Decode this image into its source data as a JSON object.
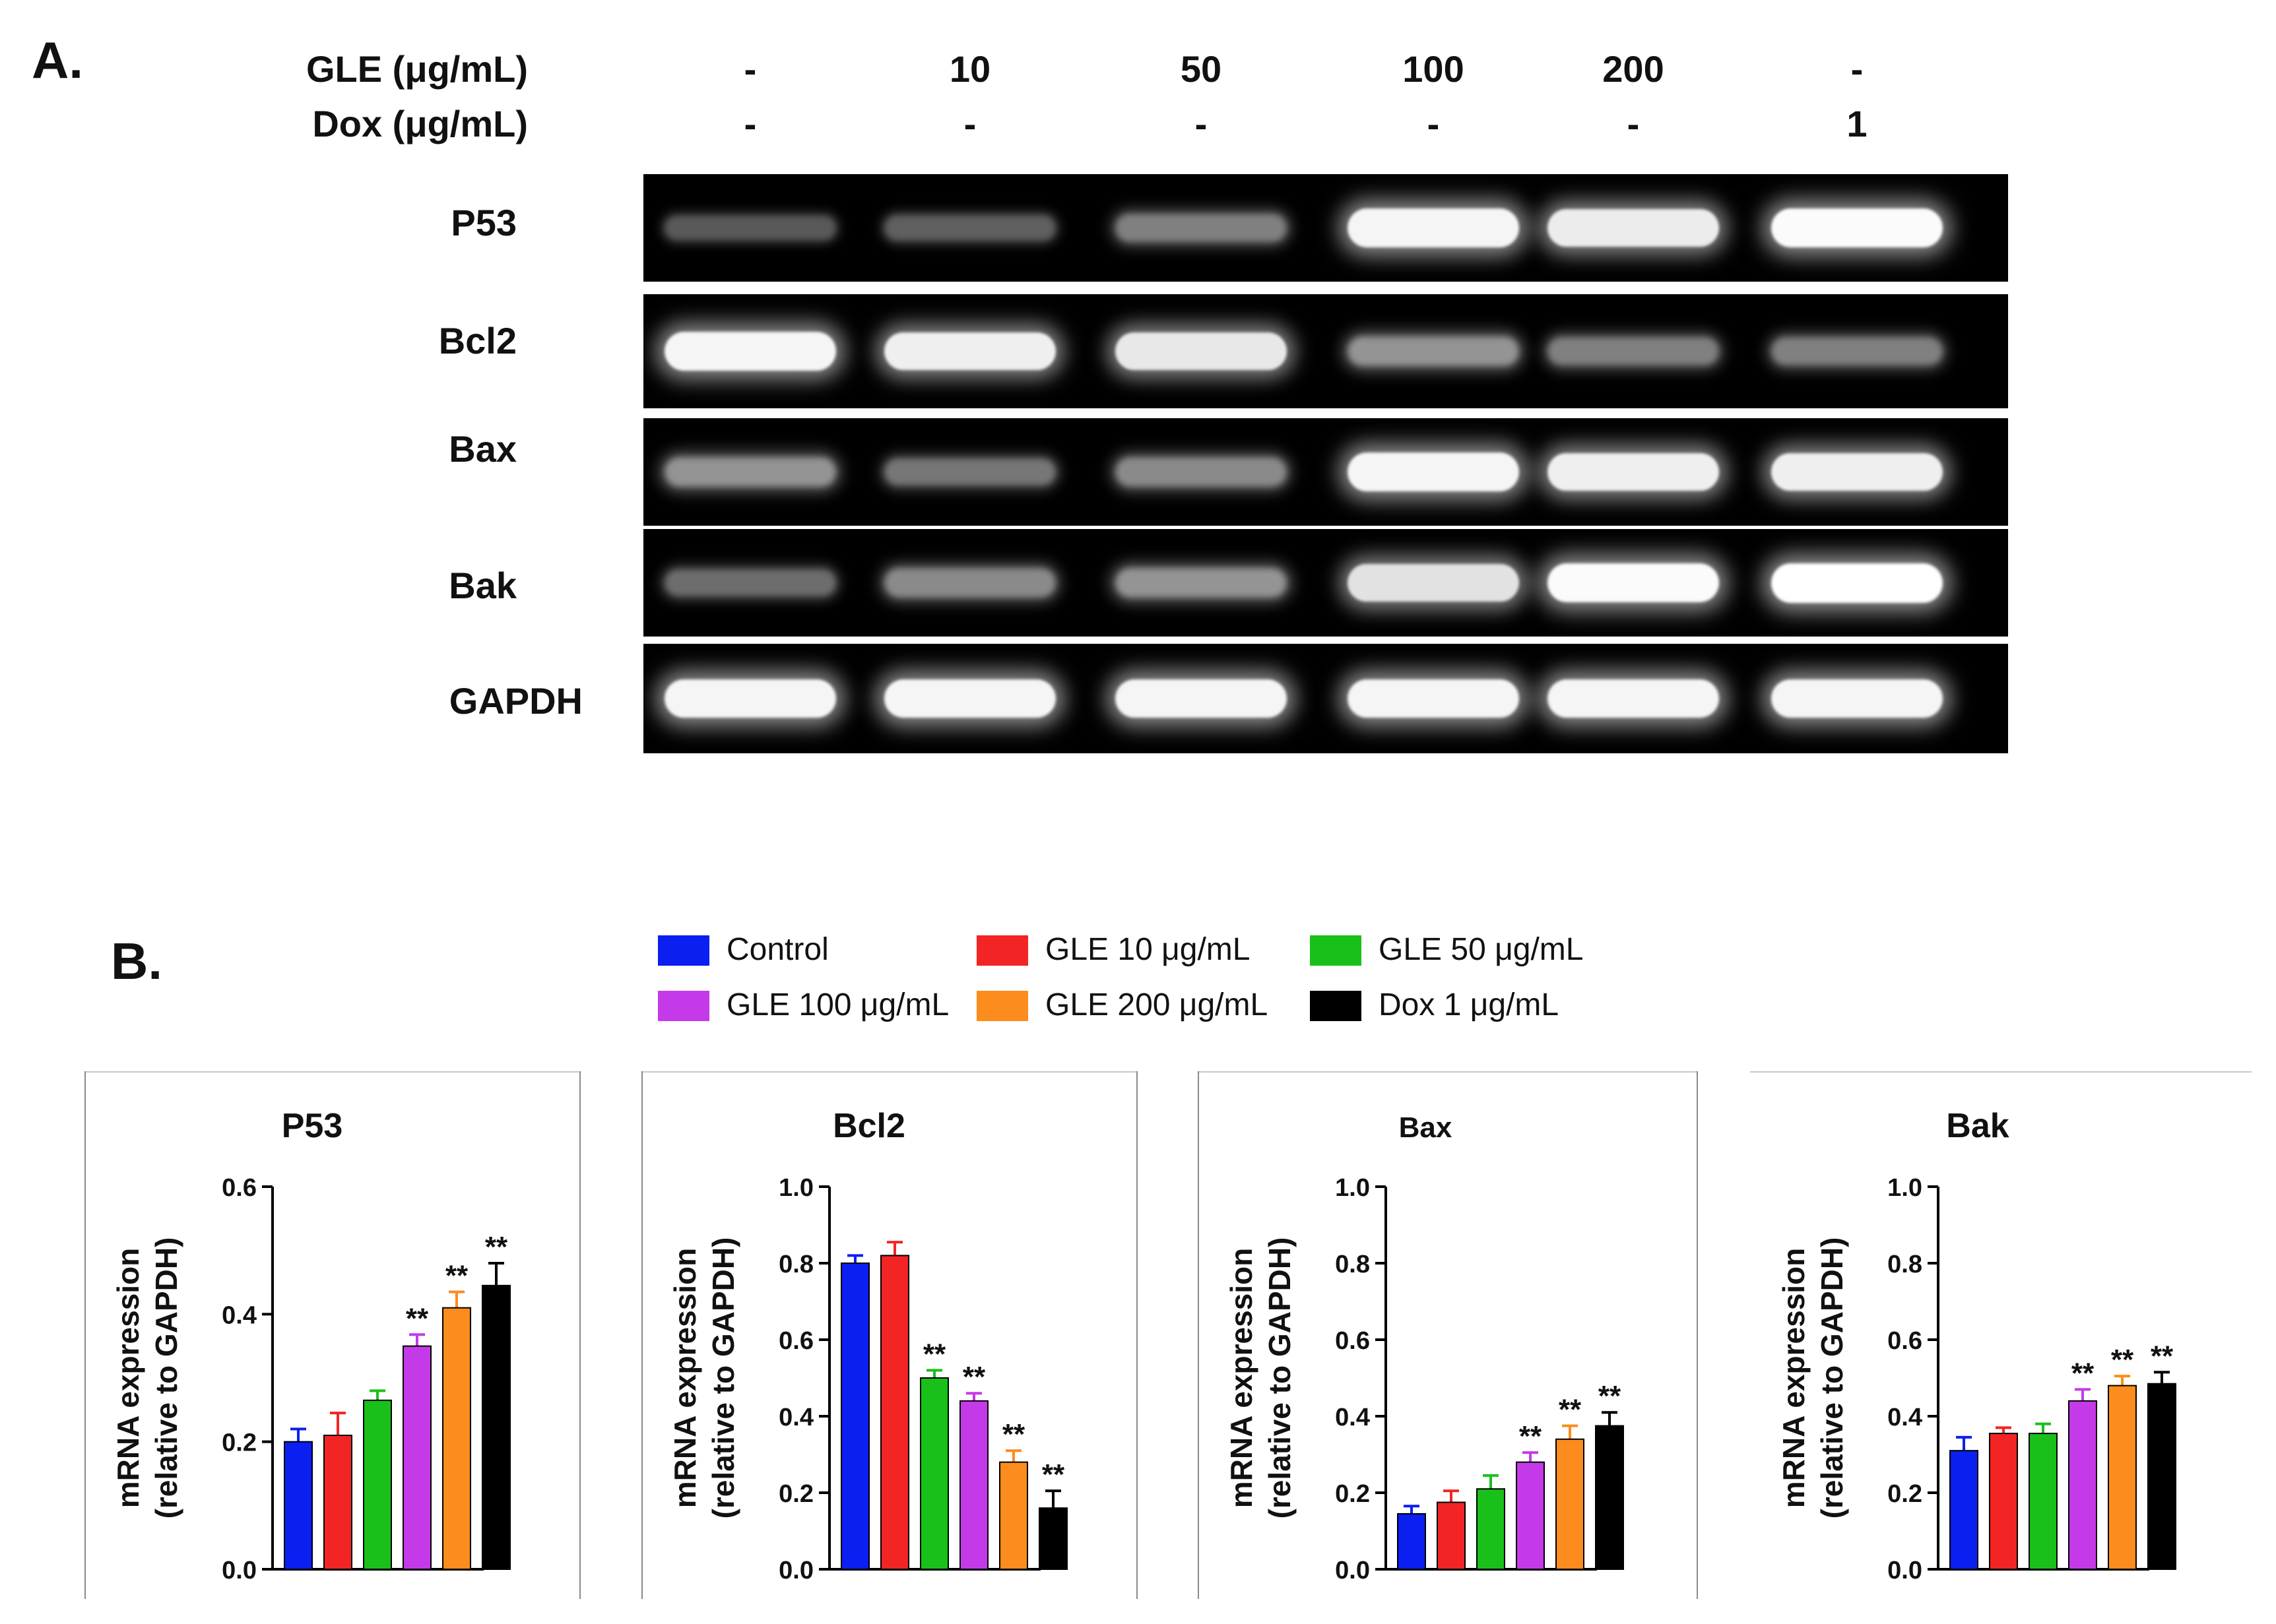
{
  "panel_a": {
    "label": "A.",
    "rows": [
      {
        "label": "GLE (μg/mL)",
        "values": [
          "-",
          "10",
          "50",
          "100",
          "200",
          "-"
        ]
      },
      {
        "label": "Dox (μg/mL)",
        "values": [
          "-",
          "-",
          "-",
          "-",
          "-",
          "1"
        ]
      }
    ],
    "genes": [
      {
        "name": "P53",
        "intensities": [
          0.15,
          0.18,
          0.35,
          0.95,
          0.9,
          0.98
        ]
      },
      {
        "name": "Bcl2",
        "intensities": [
          0.95,
          0.92,
          0.88,
          0.45,
          0.35,
          0.35
        ]
      },
      {
        "name": "Bax",
        "intensities": [
          0.45,
          0.3,
          0.4,
          0.95,
          0.92,
          0.92
        ]
      },
      {
        "name": "Bak",
        "intensities": [
          0.25,
          0.4,
          0.45,
          0.85,
          0.98,
          1.0
        ]
      },
      {
        "name": "GAPDH",
        "intensities": [
          0.95,
          0.95,
          0.95,
          0.95,
          0.95,
          0.95
        ]
      }
    ]
  },
  "panel_b": {
    "label": "B.",
    "legend": [
      {
        "name": "Control",
        "color": "#0a1ff0"
      },
      {
        "name": "GLE 10 μg/mL",
        "color": "#f32424"
      },
      {
        "name": "GLE 50 μg/mL",
        "color": "#19c019"
      },
      {
        "name": "GLE 100 μg/mL",
        "color": "#c53ae8"
      },
      {
        "name": "GLE 200 μg/mL",
        "color": "#fb8c1d"
      },
      {
        "name": "Dox 1 μg/mL",
        "color": "#000000"
      }
    ]
  },
  "chart_data": [
    {
      "type": "bar",
      "title": "P53",
      "ylabel_line1": "mRNA expression",
      "ylabel_line2": "(relative to GAPDH)",
      "ylim": [
        0,
        0.6
      ],
      "yticks": [
        "0.0",
        "0.2",
        "0.4",
        "0.6"
      ],
      "tick_values": [
        0,
        0.2,
        0.4,
        0.6
      ],
      "values": [
        0.2,
        0.21,
        0.265,
        0.35,
        0.41,
        0.445
      ],
      "errors": [
        0.02,
        0.035,
        0.015,
        0.018,
        0.025,
        0.035
      ],
      "annotations": [
        "",
        "",
        "",
        "**",
        "**",
        "**"
      ]
    },
    {
      "type": "bar",
      "title": "Bcl2",
      "ylabel_line1": "mRNA expression",
      "ylabel_line2": "(relative to GAPDH)",
      "ylim": [
        0,
        1.0
      ],
      "yticks": [
        "0.0",
        "0.2",
        "0.4",
        "0.6",
        "0.8",
        "1.0"
      ],
      "tick_values": [
        0,
        0.2,
        0.4,
        0.6,
        0.8,
        1.0
      ],
      "values": [
        0.8,
        0.82,
        0.5,
        0.44,
        0.28,
        0.16
      ],
      "errors": [
        0.02,
        0.035,
        0.02,
        0.02,
        0.03,
        0.045
      ],
      "annotations": [
        "",
        "",
        "**",
        "**",
        "**",
        "**"
      ]
    },
    {
      "type": "bar",
      "title": "Bax",
      "ylabel_line1": "mRNA expression",
      "ylabel_line2": "(relative to GAPDH)",
      "ylim": [
        0,
        1.0
      ],
      "yticks": [
        "0.0",
        "0.2",
        "0.4",
        "0.6",
        "0.8",
        "1.0"
      ],
      "tick_values": [
        0,
        0.2,
        0.4,
        0.6,
        0.8,
        1.0
      ],
      "values": [
        0.145,
        0.175,
        0.21,
        0.28,
        0.34,
        0.375
      ],
      "errors": [
        0.02,
        0.03,
        0.035,
        0.025,
        0.035,
        0.035
      ],
      "annotations": [
        "",
        "",
        "",
        "**",
        "**",
        "**"
      ]
    },
    {
      "type": "bar",
      "title": "Bak",
      "ylabel_line1": "mRNA expression",
      "ylabel_line2": "(relative to GAPDH)",
      "ylim": [
        0,
        1.0
      ],
      "yticks": [
        "0.0",
        "0.2",
        "0.4",
        "0.6",
        "0.8",
        "1.0"
      ],
      "tick_values": [
        0,
        0.2,
        0.4,
        0.6,
        0.8,
        1.0
      ],
      "values": [
        0.31,
        0.355,
        0.355,
        0.44,
        0.48,
        0.485
      ],
      "errors": [
        0.035,
        0.015,
        0.025,
        0.03,
        0.025,
        0.03
      ],
      "annotations": [
        "",
        "",
        "",
        "**",
        "**",
        "**"
      ]
    }
  ]
}
